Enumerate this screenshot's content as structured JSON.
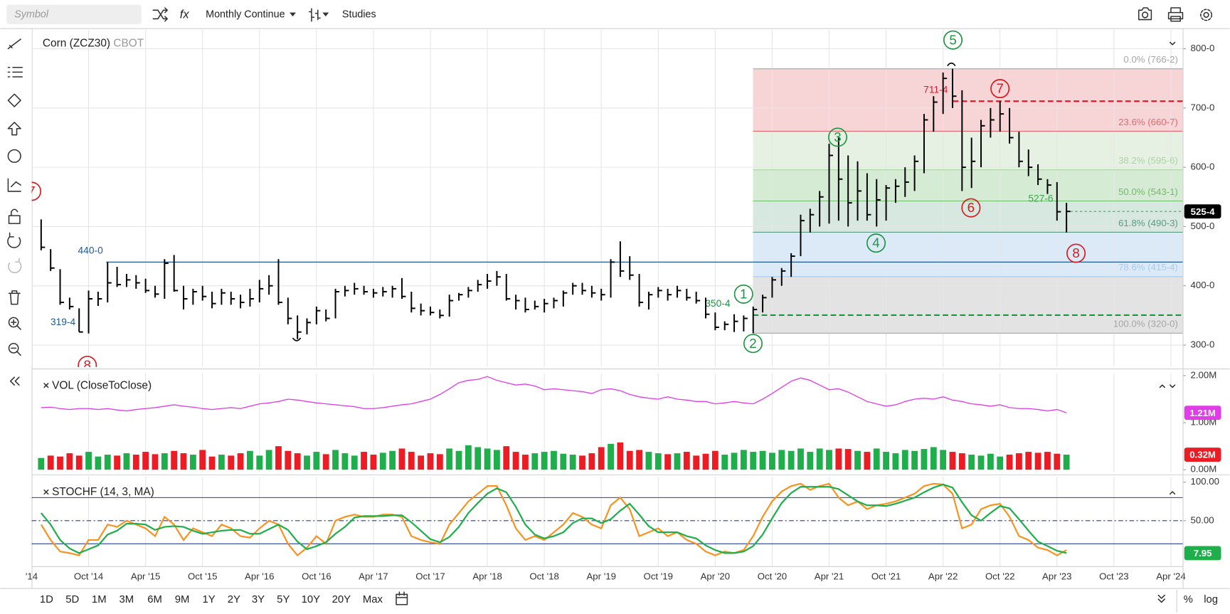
{
  "toolbar": {
    "symbol_placeholder": "Symbol",
    "formula": "fx",
    "interval": "Monthly Continue",
    "studies": "Studies"
  },
  "chart_data": [
    {
      "type": "ohlc",
      "title": "Corn (ZCZ30)",
      "exchange": "CBOT",
      "color": "#000000",
      "grid": true,
      "categories": [
        "'14",
        null,
        null,
        null,
        null,
        null,
        "Oct '14",
        null,
        null,
        null,
        null,
        null,
        "Apr '15",
        null,
        null,
        null,
        null,
        null,
        "Oct '15",
        null,
        null,
        null,
        null,
        null,
        "Apr '16",
        null,
        null,
        null,
        null,
        null,
        "Oct '16",
        null,
        null,
        null,
        null,
        null,
        "Apr '17",
        null,
        null,
        null,
        null,
        null,
        "Oct '17",
        null,
        null,
        null,
        null,
        null,
        "Apr '18",
        null,
        null,
        null,
        null,
        null,
        "Oct '18",
        null,
        null,
        null,
        null,
        null,
        "Apr '19",
        null,
        null,
        null,
        null,
        null,
        "Oct '19",
        null,
        null,
        null,
        null,
        null,
        "Apr '20",
        null,
        null,
        null,
        null,
        null,
        "Oct '20",
        null,
        null,
        null,
        null,
        null,
        "Apr '21",
        null,
        null,
        null,
        null,
        null,
        "Oct '21",
        null,
        null,
        null,
        null,
        null,
        "Apr '22",
        null,
        null,
        null,
        null,
        null,
        "Oct '22",
        null,
        null,
        null,
        null,
        null,
        "Apr '23",
        null,
        null,
        null,
        null,
        null,
        "Oct '23",
        null,
        null,
        null,
        null,
        null,
        "Apr '24"
      ],
      "high": [
        null,
        512,
        462,
        428,
        380,
        362,
        392,
        390,
        440,
        432,
        420,
        418,
        412,
        400,
        445,
        452,
        400,
        395,
        400,
        390,
        395,
        390,
        385,
        395,
        410,
        418,
        445,
        380,
        350,
        345,
        365,
        360,
        395,
        400,
        405,
        400,
        395,
        398,
        400,
        413,
        390,
        370,
        365,
        360,
        385,
        388,
        398,
        410,
        420,
        425,
        420,
        385,
        380,
        375,
        378,
        380,
        392,
        405,
        405,
        400,
        395,
        445,
        475,
        450,
        420,
        390,
        398,
        395,
        400,
        395,
        390,
        380,
        355,
        340,
        352,
        350,
        365,
        385,
        415,
        430,
        455,
        520,
        530,
        560,
        640,
        650,
        620,
        610,
        590,
        580,
        570,
        580,
        600,
        620,
        690,
        720,
        760,
        766.25,
        730,
        650,
        680,
        700,
        711.5,
        700,
        660,
        630,
        605,
        580,
        575,
        540,
        null,
        null,
        null,
        null,
        null,
        null,
        null,
        null,
        null,
        null,
        null
      ],
      "low": [
        null,
        460,
        425,
        368,
        360,
        322,
        319.5,
        366,
        372,
        398,
        398,
        395,
        388,
        380,
        378,
        390,
        360,
        368,
        375,
        362,
        368,
        368,
        362,
        365,
        372,
        385,
        368,
        335,
        310,
        318,
        335,
        340,
        345,
        382,
        385,
        385,
        380,
        382,
        380,
        378,
        355,
        350,
        350,
        345,
        348,
        375,
        380,
        390,
        395,
        400,
        375,
        360,
        355,
        360,
        355,
        362,
        365,
        385,
        385,
        380,
        375,
        380,
        415,
        410,
        365,
        360,
        380,
        375,
        380,
        375,
        370,
        345,
        325,
        325,
        322,
        323,
        320,
        355,
        380,
        400,
        415,
        450,
        490,
        500,
        505,
        510,
        500,
        510,
        510,
        500,
        510,
        540,
        550,
        560,
        590,
        660,
        690,
        700,
        560,
        565,
        600,
        650,
        660,
        640,
        600,
        585,
        570,
        555,
        510,
        490,
        null,
        null,
        null,
        null,
        null,
        null,
        null,
        null,
        null,
        null,
        null
      ],
      "close": [
        null,
        465,
        430,
        372,
        365,
        322,
        378,
        378,
        405,
        402,
        410,
        405,
        392,
        386,
        438,
        392,
        378,
        390,
        382,
        370,
        388,
        378,
        372,
        378,
        395,
        400,
        372,
        345,
        322,
        338,
        358,
        345,
        390,
        392,
        395,
        390,
        388,
        390,
        395,
        382,
        362,
        358,
        355,
        350,
        375,
        385,
        392,
        402,
        408,
        415,
        378,
        375,
        360,
        365,
        370,
        375,
        388,
        400,
        392,
        388,
        385,
        440,
        425,
        418,
        372,
        385,
        392,
        385,
        392,
        380,
        375,
        352,
        330,
        335,
        340,
        345,
        360,
        380,
        410,
        425,
        450,
        510,
        520,
        550,
        620,
        580,
        540,
        560,
        520,
        545,
        565,
        568,
        575,
        610,
        680,
        710,
        750,
        720,
        600,
        610,
        670,
        680,
        690,
        650,
        610,
        600,
        580,
        570,
        525,
        525.5,
        null,
        null,
        null,
        null,
        null,
        null,
        null,
        null,
        null,
        null,
        null
      ],
      "last_label": "525-4",
      "ylim": [
        263,
        832
      ],
      "yticks": [
        {
          "value": 300,
          "label": "300-0"
        },
        {
          "value": 400,
          "label": "400-0"
        },
        {
          "value": 500,
          "label": "500-0"
        },
        {
          "value": 600,
          "label": "600-0"
        },
        {
          "value": 700,
          "label": "700-0"
        },
        {
          "value": 800,
          "label": "800-0"
        }
      ],
      "fib": [
        {
          "value": 766.25,
          "label": "0.0% (766-2)",
          "color": "#a6a6a6",
          "fill": "#f7d5d7"
        },
        {
          "value": 660.875,
          "label": "23.6% (660-7)",
          "color": "#e06a70",
          "fill": "#e6f1e3"
        },
        {
          "value": 595.75,
          "label": "38.2% (595-6)",
          "color": "#a9d4a3",
          "fill": "#d6ebd3"
        },
        {
          "value": 543.125,
          "label": "50.0% (543-1)",
          "color": "#72bb6c",
          "fill": "#d6e8e0"
        },
        {
          "value": 490.375,
          "label": "61.8% (490-3)",
          "color": "#5c9c86",
          "fill": "#dceaf8"
        },
        {
          "value": 415.5,
          "label": "78.6% (415-4)",
          "color": "#a7cbee",
          "fill": "#e3e3e3"
        },
        {
          "value": 320,
          "label": "100.0% (320-0)",
          "color": "#a6a6a6"
        }
      ],
      "levels": [
        {
          "value": 440,
          "label": "440-0",
          "color": "#1f5a96"
        },
        {
          "value": 319.5,
          "label": "319-4",
          "color": "#1f5a96"
        },
        {
          "value": 350.5,
          "label": "350-4",
          "color": "#1a9641"
        },
        {
          "value": 711.5,
          "label": "711-4",
          "color": "#e0192c"
        },
        {
          "value": 527.75,
          "label": "527-6",
          "color": "#3aa757"
        }
      ],
      "waves": [
        {
          "label": "1",
          "color": "#1a9641"
        },
        {
          "label": "2",
          "color": "#1a9641"
        },
        {
          "label": "3",
          "color": "#1a9641"
        },
        {
          "label": "4",
          "color": "#1a9641"
        },
        {
          "label": "5",
          "color": "#1a9641"
        },
        {
          "label": "6",
          "color": "#d7191c"
        },
        {
          "label": "7",
          "color": "#d7191c"
        },
        {
          "label": "8",
          "color": "#d7191c"
        },
        {
          "label": "7",
          "color": "#d7191c"
        },
        {
          "label": "8",
          "color": "#d7191c"
        }
      ]
    },
    {
      "type": "volume",
      "title": "VOL (CloseToClose)",
      "grid": false,
      "ylim": [
        -0.05,
        2.05
      ],
      "yticks": [
        {
          "value": 0,
          "label": "0.00M"
        },
        {
          "value": 1,
          "label": "1.00M"
        },
        {
          "value": 2,
          "label": "2.00M"
        }
      ],
      "series": [
        {
          "type": "bar",
          "up_color": "#1fae4b",
          "down_color": "#ec1c24",
          "last_label": "0.32M",
          "values": [
            null,
            0.25,
            0.3,
            0.28,
            0.35,
            0.3,
            0.38,
            0.28,
            0.32,
            0.3,
            0.35,
            0.32,
            0.38,
            0.33,
            0.35,
            0.4,
            0.35,
            0.32,
            0.42,
            0.28,
            0.32,
            0.3,
            0.35,
            0.4,
            0.3,
            0.42,
            0.5,
            0.4,
            0.35,
            0.3,
            0.38,
            0.33,
            0.42,
            0.35,
            0.3,
            0.38,
            0.32,
            0.36,
            0.4,
            0.45,
            0.38,
            0.3,
            0.35,
            0.33,
            0.45,
            0.4,
            0.52,
            0.48,
            0.45,
            0.42,
            0.5,
            0.38,
            0.32,
            0.35,
            0.38,
            0.4,
            0.34,
            0.32,
            0.3,
            0.35,
            0.48,
            0.55,
            0.58,
            0.4,
            0.42,
            0.38,
            0.35,
            0.33,
            0.35,
            0.38,
            0.3,
            0.34,
            0.4,
            0.32,
            0.36,
            0.42,
            0.38,
            0.4,
            0.36,
            0.42,
            0.4,
            0.45,
            0.38,
            0.45,
            0.42,
            0.45,
            0.44,
            0.4,
            0.38,
            0.45,
            0.38,
            0.35,
            0.42,
            0.4,
            0.44,
            0.48,
            0.42,
            0.38,
            0.35,
            0.32,
            0.3,
            0.34,
            0.28,
            0.32,
            0.35,
            0.38,
            0.36,
            0.38,
            0.34,
            0.32,
            null,
            null,
            null,
            null,
            null,
            null,
            null,
            null,
            null,
            null,
            null
          ]
        },
        {
          "type": "line",
          "color": "#dd3ee6",
          "badge_color": "#e03ce8",
          "last_label": "1.21M",
          "values": [
            null,
            1.32,
            1.33,
            1.3,
            1.28,
            1.3,
            1.3,
            1.28,
            1.3,
            1.27,
            1.25,
            1.28,
            1.3,
            1.32,
            1.35,
            1.38,
            1.35,
            1.33,
            1.3,
            1.28,
            1.3,
            1.32,
            1.3,
            1.35,
            1.4,
            1.42,
            1.45,
            1.5,
            1.48,
            1.45,
            1.42,
            1.4,
            1.38,
            1.36,
            1.34,
            1.3,
            1.3,
            1.32,
            1.35,
            1.38,
            1.4,
            1.45,
            1.5,
            1.6,
            1.72,
            1.85,
            1.9,
            1.92,
            1.98,
            1.9,
            1.85,
            1.8,
            1.82,
            1.78,
            1.7,
            1.72,
            1.7,
            1.68,
            1.66,
            1.62,
            1.7,
            1.72,
            1.68,
            1.6,
            1.55,
            1.52,
            1.5,
            1.55,
            1.5,
            1.48,
            1.45,
            1.45,
            1.4,
            1.42,
            1.45,
            1.42,
            1.4,
            1.5,
            1.62,
            1.75,
            1.88,
            1.95,
            1.9,
            1.8,
            1.7,
            1.72,
            1.65,
            1.55,
            1.45,
            1.4,
            1.35,
            1.38,
            1.45,
            1.5,
            1.52,
            1.5,
            1.55,
            1.48,
            1.45,
            1.4,
            1.38,
            1.35,
            1.38,
            1.32,
            1.3,
            1.3,
            1.28,
            1.25,
            1.28,
            1.21,
            null,
            null,
            null,
            null,
            null,
            null,
            null,
            null,
            null,
            null,
            null
          ]
        }
      ]
    },
    {
      "type": "line",
      "title": "STOCHF (14, 3, MA)",
      "grid": false,
      "ylim": [
        -9,
        107
      ],
      "yticks": [
        {
          "value": 50,
          "label": "50.00"
        },
        {
          "value": 100,
          "label": "100.00"
        }
      ],
      "bands": [
        20,
        80
      ],
      "midline": 50,
      "band_color": "#2a3f9a",
      "series": [
        {
          "color": "#f7931e",
          "values": [
            null,
            45,
            25,
            10,
            8,
            5,
            25,
            25,
            45,
            42,
            50,
            45,
            40,
            30,
            55,
            45,
            25,
            40,
            35,
            30,
            45,
            40,
            30,
            28,
            40,
            50,
            45,
            20,
            5,
            15,
            30,
            20,
            50,
            55,
            58,
            55,
            55,
            58,
            58,
            55,
            30,
            25,
            22,
            20,
            45,
            60,
            75,
            85,
            95,
            95,
            70,
            40,
            25,
            30,
            25,
            35,
            45,
            60,
            55,
            45,
            40,
            70,
            80,
            65,
            30,
            35,
            40,
            30,
            35,
            25,
            20,
            10,
            5,
            10,
            8,
            12,
            30,
            55,
            75,
            88,
            95,
            98,
            90,
            95,
            98,
            80,
            70,
            75,
            65,
            70,
            72,
            75,
            80,
            85,
            95,
            98,
            97,
            85,
            40,
            45,
            65,
            70,
            72,
            55,
            30,
            25,
            15,
            12,
            5,
            12,
            null,
            null,
            null,
            null,
            null,
            null,
            null,
            null,
            null,
            null,
            null
          ]
        },
        {
          "color": "#1fae4b",
          "last_label": "7.95",
          "values": [
            null,
            60,
            45,
            25,
            14,
            8,
            13,
            18,
            32,
            37,
            46,
            46,
            45,
            38,
            42,
            43,
            42,
            37,
            33,
            35,
            37,
            38,
            38,
            33,
            33,
            39,
            45,
            38,
            23,
            13,
            17,
            22,
            33,
            42,
            54,
            56,
            56,
            56,
            57,
            57,
            48,
            37,
            26,
            22,
            29,
            42,
            60,
            73,
            85,
            92,
            87,
            68,
            45,
            32,
            27,
            30,
            35,
            47,
            53,
            53,
            47,
            52,
            63,
            72,
            58,
            43,
            35,
            35,
            35,
            30,
            27,
            18,
            12,
            8,
            8,
            10,
            17,
            32,
            53,
            73,
            86,
            94,
            94,
            94,
            94,
            91,
            83,
            75,
            70,
            70,
            69,
            72,
            76,
            80,
            87,
            93,
            97,
            93,
            74,
            57,
            50,
            60,
            69,
            66,
            52,
            37,
            23,
            17,
            11,
            7.95,
            null,
            null,
            null,
            null,
            null,
            null,
            null,
            null,
            null,
            null,
            null
          ]
        }
      ]
    }
  ],
  "ranges": [
    "1D",
    "5D",
    "1M",
    "3M",
    "6M",
    "9M",
    "1Y",
    "2Y",
    "3Y",
    "5Y",
    "10Y",
    "20Y",
    "Max"
  ],
  "scale_buttons": [
    "%",
    "log"
  ]
}
